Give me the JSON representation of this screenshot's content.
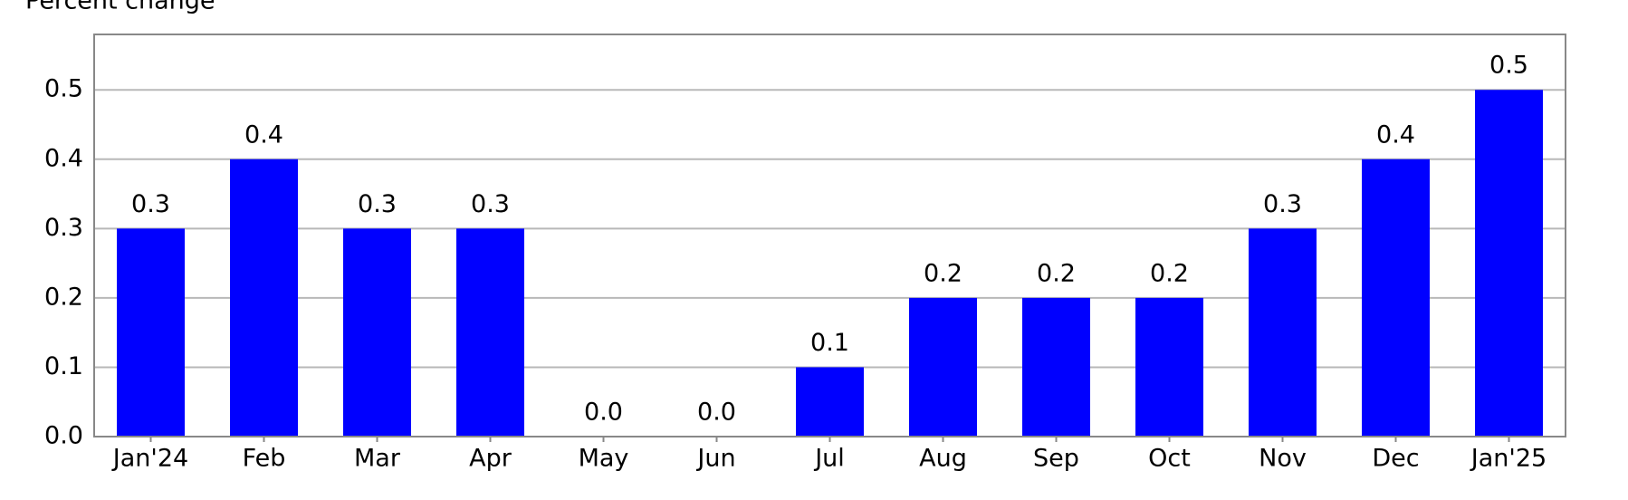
{
  "chart_data": {
    "type": "bar",
    "title": "Percent change",
    "categories": [
      "Jan'24",
      "Feb",
      "Mar",
      "Apr",
      "May",
      "Jun",
      "Jul",
      "Aug",
      "Sep",
      "Oct",
      "Nov",
      "Dec",
      "Jan'25"
    ],
    "values": [
      0.3,
      0.4,
      0.3,
      0.3,
      0,
      0,
      0.1,
      0.2,
      0.2,
      0.2,
      0.3,
      0.4,
      0.5
    ],
    "value_labels": [
      "0.3",
      "0.4",
      "0.3",
      "0.3",
      "0.0",
      "0.0",
      "0.1",
      "0.2",
      "0.2",
      "0.2",
      "0.3",
      "0.4",
      "0.5"
    ],
    "color": "#0000ff",
    "ylim": [
      0,
      0.58
    ],
    "yticks": [
      {
        "value": 0,
        "label": "0.0"
      },
      0.1,
      0.2,
      0.3,
      0.4,
      0.5
    ],
    "grid": true
  }
}
